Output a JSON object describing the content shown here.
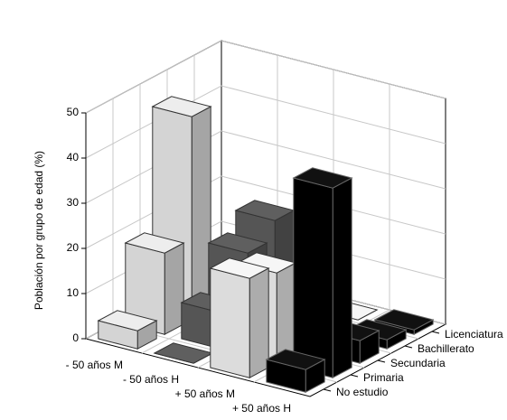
{
  "chart_data": {
    "type": "bar3d",
    "ylabel": "Población por grupo de edad (%)",
    "categories": [
      "- 50 años M",
      "- 50 años H",
      "+ 50 años M",
      "+ 50 años H"
    ],
    "category_colors": [
      "#d4d4d4",
      "#555555",
      "#dcdcdc",
      "#000000"
    ],
    "series": [
      {
        "name": "No estudio",
        "values": [
          4,
          0,
          22,
          5
        ]
      },
      {
        "name": "Primaria",
        "values": [
          18,
          8,
          20,
          42
        ]
      },
      {
        "name": "Secundaria",
        "values": [
          45,
          18,
          2,
          5
        ]
      },
      {
        "name": "Bachillerato",
        "values": [
          0,
          22,
          0,
          2
        ]
      },
      {
        "name": "Licenciatura",
        "values": [
          0,
          0,
          0,
          1
        ]
      }
    ],
    "ylim": [
      0,
      50
    ],
    "yticks": [
      0,
      10,
      20,
      30,
      40,
      50
    ],
    "grid": true
  }
}
